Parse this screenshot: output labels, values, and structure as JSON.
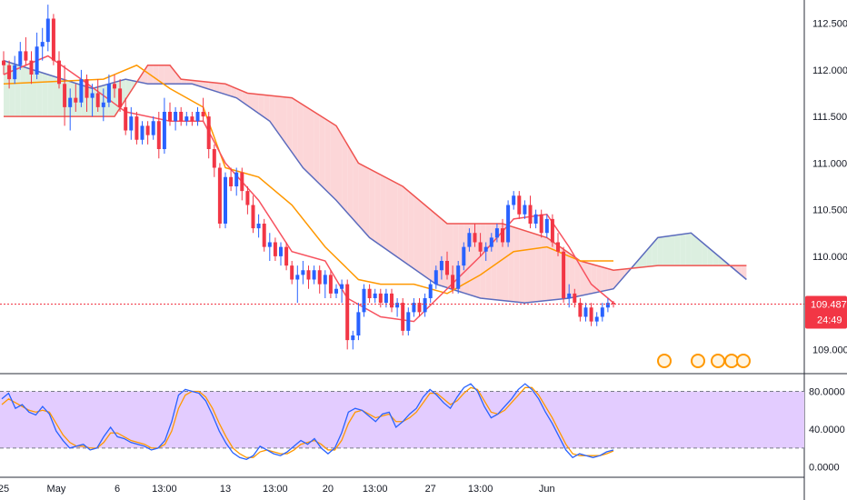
{
  "chart_data": [
    {
      "type": "candlestick",
      "title": "",
      "indicators": [
        "ichimoku cloud"
      ],
      "y_axis": {
        "ticks": [
          "112.500",
          "112.000",
          "111.500",
          "111.000",
          "110.500",
          "110.000",
          "109.500",
          "109.000"
        ],
        "range": [
          108.75,
          112.75
        ]
      },
      "x_axis": {
        "ticks": [
          "25",
          "May",
          "6",
          "13:00",
          "13",
          "13:00",
          "20",
          "13:00",
          "27",
          "13:00",
          "Jun"
        ]
      },
      "last_price": {
        "value": "109.487",
        "countdown": "24:49",
        "color": "#f23645"
      },
      "colors": {
        "up": "#2962ff",
        "down": "#f23645",
        "tenkan": "#f7525f",
        "kijun": "#ff9800",
        "senkou_a": "#5b6bbd",
        "senkou_b": "#ef5350",
        "cloud_bull": "#dcefe0",
        "cloud_bear": "#fcd6d8"
      },
      "candles": [
        [
          112.1,
          112.2,
          111.95,
          112.05
        ],
        [
          112.05,
          112.1,
          111.8,
          111.9
        ],
        [
          111.9,
          112.15,
          111.85,
          112.05
        ],
        [
          112.05,
          112.3,
          112.0,
          112.2
        ],
        [
          112.2,
          112.35,
          112.05,
          112.1
        ],
        [
          112.1,
          112.2,
          111.85,
          111.95
        ],
        [
          111.95,
          112.4,
          111.9,
          112.25
        ],
        [
          112.25,
          112.45,
          112.1,
          112.3
        ],
        [
          112.3,
          112.7,
          112.2,
          112.55
        ],
        [
          112.55,
          112.6,
          112.05,
          112.1
        ],
        [
          112.1,
          112.2,
          111.8,
          111.85
        ],
        [
          111.85,
          112.05,
          111.4,
          111.6
        ],
        [
          111.6,
          111.8,
          111.35,
          111.7
        ],
        [
          111.7,
          111.85,
          111.55,
          111.65
        ],
        [
          111.65,
          112.0,
          111.6,
          111.9
        ],
        [
          111.9,
          111.95,
          111.55,
          111.7
        ],
        [
          111.7,
          111.85,
          111.5,
          111.75
        ],
        [
          111.75,
          111.9,
          111.55,
          111.6
        ],
        [
          111.6,
          111.8,
          111.45,
          111.65
        ],
        [
          111.65,
          111.95,
          111.6,
          111.85
        ],
        [
          111.85,
          111.95,
          111.7,
          111.8
        ],
        [
          111.8,
          111.9,
          111.55,
          111.6
        ],
        [
          111.6,
          111.7,
          111.3,
          111.35
        ],
        [
          111.35,
          111.6,
          111.25,
          111.5
        ],
        [
          111.5,
          111.55,
          111.2,
          111.25
        ],
        [
          111.25,
          111.45,
          111.2,
          111.4
        ],
        [
          111.4,
          111.45,
          111.2,
          111.3
        ],
        [
          111.3,
          111.5,
          111.25,
          111.45
        ],
        [
          111.45,
          111.55,
          111.05,
          111.15
        ],
        [
          111.15,
          111.7,
          111.1,
          111.55
        ],
        [
          111.55,
          111.65,
          111.4,
          111.45
        ],
        [
          111.45,
          111.6,
          111.35,
          111.55
        ],
        [
          111.55,
          111.6,
          111.4,
          111.45
        ],
        [
          111.45,
          111.55,
          111.4,
          111.5
        ],
        [
          111.5,
          111.55,
          111.4,
          111.45
        ],
        [
          111.45,
          111.6,
          111.4,
          111.55
        ],
        [
          111.55,
          111.7,
          111.45,
          111.5
        ],
        [
          111.5,
          111.55,
          111.05,
          111.15
        ],
        [
          111.15,
          111.2,
          110.85,
          110.95
        ],
        [
          110.95,
          111.0,
          110.3,
          110.35
        ],
        [
          110.35,
          110.9,
          110.3,
          110.85
        ],
        [
          110.85,
          110.95,
          110.7,
          110.75
        ],
        [
          110.75,
          110.95,
          110.65,
          110.9
        ],
        [
          110.9,
          110.95,
          110.6,
          110.7
        ],
        [
          110.7,
          110.75,
          110.45,
          110.55
        ],
        [
          110.55,
          110.65,
          110.25,
          110.3
        ],
        [
          110.3,
          110.45,
          110.2,
          110.35
        ],
        [
          110.35,
          110.4,
          110.05,
          110.1
        ],
        [
          110.1,
          110.25,
          109.95,
          110.15
        ],
        [
          110.15,
          110.2,
          109.95,
          110.0
        ],
        [
          110.0,
          110.15,
          109.9,
          110.1
        ],
        [
          110.1,
          110.15,
          109.85,
          109.9
        ],
        [
          109.9,
          109.95,
          109.7,
          109.75
        ],
        [
          109.75,
          109.9,
          109.5,
          109.8
        ],
        [
          109.8,
          109.95,
          109.7,
          109.85
        ],
        [
          109.85,
          109.9,
          109.65,
          109.75
        ],
        [
          109.75,
          109.9,
          109.7,
          109.85
        ],
        [
          109.85,
          109.9,
          109.6,
          109.7
        ],
        [
          109.7,
          109.85,
          109.55,
          109.8
        ],
        [
          109.8,
          109.85,
          109.55,
          109.6
        ],
        [
          109.6,
          109.7,
          109.55,
          109.65
        ],
        [
          109.65,
          109.75,
          109.5,
          109.7
        ],
        [
          109.7,
          109.75,
          109.0,
          109.1
        ],
        [
          109.1,
          109.2,
          109.0,
          109.15
        ],
        [
          109.15,
          109.5,
          109.1,
          109.4
        ],
        [
          109.4,
          109.7,
          109.35,
          109.65
        ],
        [
          109.65,
          109.7,
          109.5,
          109.55
        ],
        [
          109.55,
          109.65,
          109.5,
          109.6
        ],
        [
          109.6,
          109.65,
          109.45,
          109.5
        ],
        [
          109.5,
          109.65,
          109.45,
          109.6
        ],
        [
          109.6,
          109.65,
          109.4,
          109.45
        ],
        [
          109.45,
          109.55,
          109.35,
          109.5
        ],
        [
          109.5,
          109.55,
          109.15,
          109.2
        ],
        [
          109.2,
          109.45,
          109.15,
          109.4
        ],
        [
          109.4,
          109.55,
          109.35,
          109.5
        ],
        [
          109.5,
          109.55,
          109.35,
          109.4
        ],
        [
          109.4,
          109.6,
          109.35,
          109.55
        ],
        [
          109.55,
          109.75,
          109.5,
          109.7
        ],
        [
          109.7,
          109.9,
          109.65,
          109.85
        ],
        [
          109.85,
          110.0,
          109.75,
          109.95
        ],
        [
          109.95,
          110.05,
          109.75,
          109.8
        ],
        [
          109.8,
          109.9,
          109.6,
          109.65
        ],
        [
          109.65,
          109.95,
          109.6,
          109.9
        ],
        [
          109.9,
          110.15,
          109.85,
          110.1
        ],
        [
          110.1,
          110.3,
          110.05,
          110.25
        ],
        [
          110.25,
          110.35,
          110.1,
          110.15
        ],
        [
          110.15,
          110.25,
          110.0,
          110.05
        ],
        [
          110.05,
          110.15,
          109.95,
          110.1
        ],
        [
          110.1,
          110.25,
          110.05,
          110.2
        ],
        [
          110.2,
          110.35,
          110.15,
          110.3
        ],
        [
          110.3,
          110.4,
          110.1,
          110.15
        ],
        [
          110.15,
          110.6,
          110.1,
          110.55
        ],
        [
          110.55,
          110.7,
          110.5,
          110.65
        ],
        [
          110.65,
          110.7,
          110.4,
          110.45
        ],
        [
          110.45,
          110.6,
          110.4,
          110.55
        ],
        [
          110.55,
          110.65,
          110.3,
          110.35
        ],
        [
          110.35,
          110.5,
          110.3,
          110.45
        ],
        [
          110.45,
          110.5,
          110.2,
          110.25
        ],
        [
          110.25,
          110.45,
          110.2,
          110.4
        ],
        [
          110.4,
          110.45,
          110.1,
          110.15
        ],
        [
          110.15,
          110.25,
          110.0,
          110.05
        ],
        [
          110.05,
          110.1,
          109.5,
          109.55
        ],
        [
          109.55,
          109.7,
          109.45,
          109.6
        ],
        [
          109.6,
          109.65,
          109.45,
          109.5
        ],
        [
          109.5,
          109.55,
          109.3,
          109.35
        ],
        [
          109.35,
          109.5,
          109.3,
          109.45
        ],
        [
          109.45,
          109.5,
          109.25,
          109.3
        ],
        [
          109.3,
          109.4,
          109.25,
          109.35
        ],
        [
          109.35,
          109.5,
          109.3,
          109.45
        ],
        [
          109.45,
          109.55,
          109.4,
          109.5
        ],
        [
          109.5,
          109.52,
          109.45,
          109.487
        ]
      ],
      "tenkan": [
        [
          0,
          111.95
        ],
        [
          8,
          112.15
        ],
        [
          14,
          111.9
        ],
        [
          22,
          111.55
        ],
        [
          30,
          111.45
        ],
        [
          36,
          111.45
        ],
        [
          40,
          111.0
        ],
        [
          46,
          110.6
        ],
        [
          52,
          110.05
        ],
        [
          58,
          109.95
        ],
        [
          62,
          109.55
        ],
        [
          68,
          109.35
        ],
        [
          74,
          109.3
        ],
        [
          80,
          109.65
        ],
        [
          86,
          110.0
        ],
        [
          92,
          110.4
        ],
        [
          98,
          110.45
        ],
        [
          102,
          110.1
        ],
        [
          106,
          109.7
        ],
        [
          110,
          109.5
        ]
      ],
      "kijun": [
        [
          0,
          111.85
        ],
        [
          18,
          111.9
        ],
        [
          24,
          112.05
        ],
        [
          30,
          111.8
        ],
        [
          36,
          111.6
        ],
        [
          40,
          110.95
        ],
        [
          46,
          110.85
        ],
        [
          52,
          110.55
        ],
        [
          58,
          110.1
        ],
        [
          64,
          109.75
        ],
        [
          68,
          109.7
        ],
        [
          74,
          109.7
        ],
        [
          80,
          109.6
        ],
        [
          86,
          109.8
        ],
        [
          92,
          110.05
        ],
        [
          98,
          110.1
        ],
        [
          104,
          109.95
        ],
        [
          110,
          109.95
        ]
      ],
      "senkou_a": [
        [
          0,
          112.1
        ],
        [
          8,
          111.95
        ],
        [
          16,
          111.8
        ],
        [
          22,
          111.9
        ],
        [
          26,
          111.85
        ],
        [
          34,
          111.85
        ],
        [
          42,
          111.7
        ],
        [
          48,
          111.45
        ],
        [
          54,
          110.95
        ],
        [
          60,
          110.6
        ],
        [
          66,
          110.2
        ],
        [
          72,
          109.95
        ],
        [
          78,
          109.7
        ],
        [
          86,
          109.55
        ],
        [
          94,
          109.5
        ],
        [
          102,
          109.55
        ],
        [
          110,
          109.65
        ],
        [
          118,
          110.2
        ],
        [
          124,
          110.25
        ],
        [
          130,
          109.95
        ],
        [
          134,
          109.75
        ]
      ],
      "senkou_b": [
        [
          0,
          111.5
        ],
        [
          20,
          111.5
        ],
        [
          26,
          112.05
        ],
        [
          30,
          112.05
        ],
        [
          32,
          111.9
        ],
        [
          40,
          111.85
        ],
        [
          44,
          111.75
        ],
        [
          52,
          111.7
        ],
        [
          60,
          111.4
        ],
        [
          64,
          111.0
        ],
        [
          72,
          110.75
        ],
        [
          80,
          110.35
        ],
        [
          90,
          110.35
        ],
        [
          98,
          110.2
        ],
        [
          104,
          109.95
        ],
        [
          110,
          109.85
        ],
        [
          118,
          109.9
        ],
        [
          130,
          109.9
        ],
        [
          134,
          109.9
        ]
      ],
      "x_tick_positions": [
        0,
        9.5,
        20.5,
        29,
        40,
        49,
        58.5,
        67,
        77,
        86,
        98
      ]
    },
    {
      "type": "line",
      "title": "",
      "indicators": [
        "stochastic oscillator"
      ],
      "y_axis": {
        "ticks": [
          "80.0000",
          "40.0000",
          "0.0000"
        ],
        "range": [
          -8,
          92
        ]
      },
      "band": {
        "upper": 80,
        "lower": 20,
        "fill": "#e3ccff"
      },
      "series": [
        {
          "color": "#2962ff",
          "values": [
            72,
            78,
            62,
            66,
            58,
            55,
            64,
            56,
            38,
            28,
            20,
            22,
            24,
            18,
            20,
            32,
            42,
            32,
            30,
            26,
            24,
            22,
            18,
            20,
            28,
            48,
            76,
            82,
            80,
            78,
            70,
            55,
            38,
            25,
            15,
            10,
            8,
            12,
            22,
            18,
            14,
            12,
            16,
            22,
            28,
            24,
            30,
            20,
            14,
            20,
            36,
            58,
            62,
            60,
            54,
            48,
            56,
            58,
            42,
            48,
            56,
            62,
            74,
            82,
            76,
            68,
            62,
            74,
            84,
            88,
            80,
            64,
            52,
            56,
            64,
            72,
            82,
            88,
            82,
            72,
            58,
            46,
            32,
            18,
            10,
            14,
            12,
            10,
            12,
            16,
            18
          ]
        },
        {
          "color": "#ff9800",
          "values": [
            66,
            72,
            68,
            64,
            60,
            58,
            60,
            58,
            46,
            34,
            26,
            22,
            22,
            20,
            20,
            26,
            36,
            36,
            32,
            28,
            26,
            24,
            20,
            20,
            24,
            38,
            62,
            76,
            80,
            80,
            74,
            62,
            46,
            32,
            20,
            14,
            10,
            10,
            16,
            18,
            16,
            14,
            14,
            18,
            24,
            26,
            28,
            24,
            18,
            18,
            28,
            46,
            58,
            60,
            56,
            52,
            54,
            56,
            48,
            48,
            52,
            58,
            68,
            78,
            78,
            72,
            66,
            70,
            78,
            84,
            82,
            70,
            58,
            56,
            60,
            68,
            76,
            84,
            84,
            76,
            64,
            52,
            38,
            24,
            14,
            12,
            12,
            12,
            12,
            14,
            17
          ]
        }
      ]
    }
  ]
}
